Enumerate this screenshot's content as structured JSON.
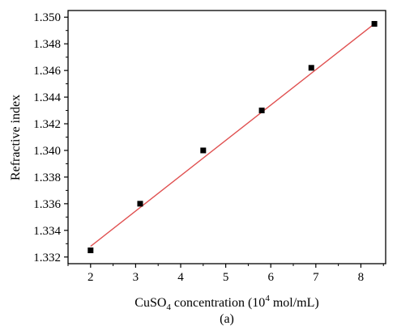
{
  "chart_data": {
    "type": "scatter",
    "title": "",
    "xlabel": {
      "prefix": "CuSO",
      "subscript": "4",
      "middle": " concentration (10",
      "superscript": "4",
      "suffix": " mol/mL)"
    },
    "ylabel": "Refractive index",
    "caption": "(a)",
    "xlim": [
      1.5,
      8.55
    ],
    "ylim": [
      1.3315,
      1.3505
    ],
    "xticks": [
      2,
      3,
      4,
      5,
      6,
      7,
      8
    ],
    "yticks": [
      1.332,
      1.334,
      1.336,
      1.338,
      1.34,
      1.342,
      1.344,
      1.346,
      1.348,
      1.35
    ],
    "ytick_labels": [
      "1.332",
      "1.334",
      "1.336",
      "1.338",
      "1.340",
      "1.342",
      "1.344",
      "1.346",
      "1.348",
      "1.350"
    ],
    "grid": false,
    "legend": "none",
    "series": [
      {
        "marker": "square",
        "color": "#000000",
        "points": [
          {
            "x": 2.0,
            "y": 1.3325
          },
          {
            "x": 3.1,
            "y": 1.336
          },
          {
            "x": 4.5,
            "y": 1.34
          },
          {
            "x": 5.8,
            "y": 1.343
          },
          {
            "x": 6.9,
            "y": 1.3462
          },
          {
            "x": 8.3,
            "y": 1.3495
          }
        ]
      }
    ],
    "fit_line": {
      "color": "#e05050",
      "x": [
        2.0,
        8.3
      ],
      "y": [
        1.3328,
        1.3495
      ]
    }
  }
}
